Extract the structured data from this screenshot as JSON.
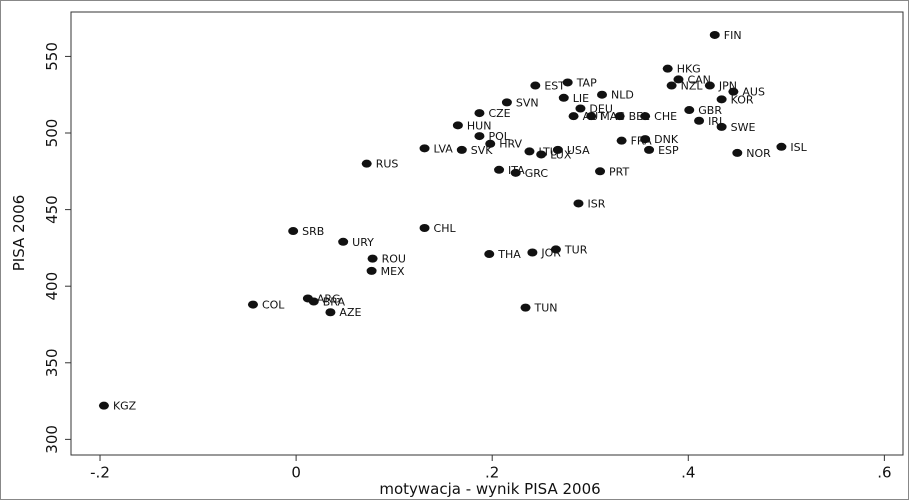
{
  "chart_data": {
    "type": "scatter",
    "xlabel": "motywacja -  wynik PISA 2006",
    "ylabel": "PISA 2006",
    "xlim": [
      -0.2296,
      0.619
    ],
    "ylim": [
      289.8,
      579
    ],
    "xticks": [
      {
        "value": -0.2,
        "label": "-.2"
      },
      0,
      {
        "value": 0.2,
        "label": ".2"
      },
      {
        "value": 0.4,
        "label": ".4"
      },
      {
        "value": 0.6,
        "label": ".6"
      }
    ],
    "yticks": [
      300,
      350,
      400,
      450,
      500,
      550
    ],
    "color": "#111111",
    "categories": [
      "FIN",
      "HKG",
      "CAN",
      "NZL",
      "JPN",
      "AUS",
      "KOR",
      "GBR",
      "IRL",
      "SWE",
      "ISL",
      "NOR",
      "EST",
      "TAP",
      "NLD",
      "LIE",
      "SVN",
      "DEU",
      "CZE",
      "AUT",
      "MAC",
      "BEL",
      "CHE",
      "HUN",
      "POL",
      "HRV",
      "FRA",
      "DNK",
      "ESP",
      "LVA",
      "SVK",
      "LTU",
      "LUX",
      "USA",
      "ITA",
      "GRC",
      "RUS",
      "PRT",
      "ISR",
      "CHL",
      "SRB",
      "URY",
      "THA",
      "JOR",
      "TUR",
      "ROU",
      "MEX",
      "COL",
      "ARG",
      "BRA",
      "AZE",
      "TUN",
      "KGZ"
    ],
    "x": [
      0.427,
      0.379,
      0.39,
      0.383,
      0.422,
      0.446,
      0.434,
      0.401,
      0.411,
      0.434,
      0.495,
      0.45,
      0.244,
      0.277,
      0.312,
      0.273,
      0.215,
      0.29,
      0.187,
      0.283,
      0.301,
      0.33,
      0.356,
      0.165,
      0.187,
      0.198,
      0.332,
      0.356,
      0.36,
      0.131,
      0.169,
      0.238,
      0.25,
      0.267,
      0.207,
      0.224,
      0.072,
      0.31,
      0.288,
      0.131,
      -0.003,
      0.048,
      0.197,
      0.241,
      0.265,
      0.078,
      0.077,
      -0.044,
      0.012,
      0.018,
      0.035,
      0.234,
      -0.196
    ],
    "values": [
      564,
      542,
      535,
      531,
      531,
      527,
      522,
      515,
      508,
      504,
      491,
      487,
      531,
      533,
      525,
      523,
      520,
      516,
      513,
      511,
      511,
      511,
      511,
      505,
      498,
      493,
      495,
      496,
      489,
      490,
      489,
      488,
      486,
      489,
      476,
      474,
      480,
      475,
      454,
      438,
      436,
      429,
      421,
      422,
      424,
      418,
      410,
      388,
      392,
      390,
      383,
      386,
      322
    ]
  }
}
